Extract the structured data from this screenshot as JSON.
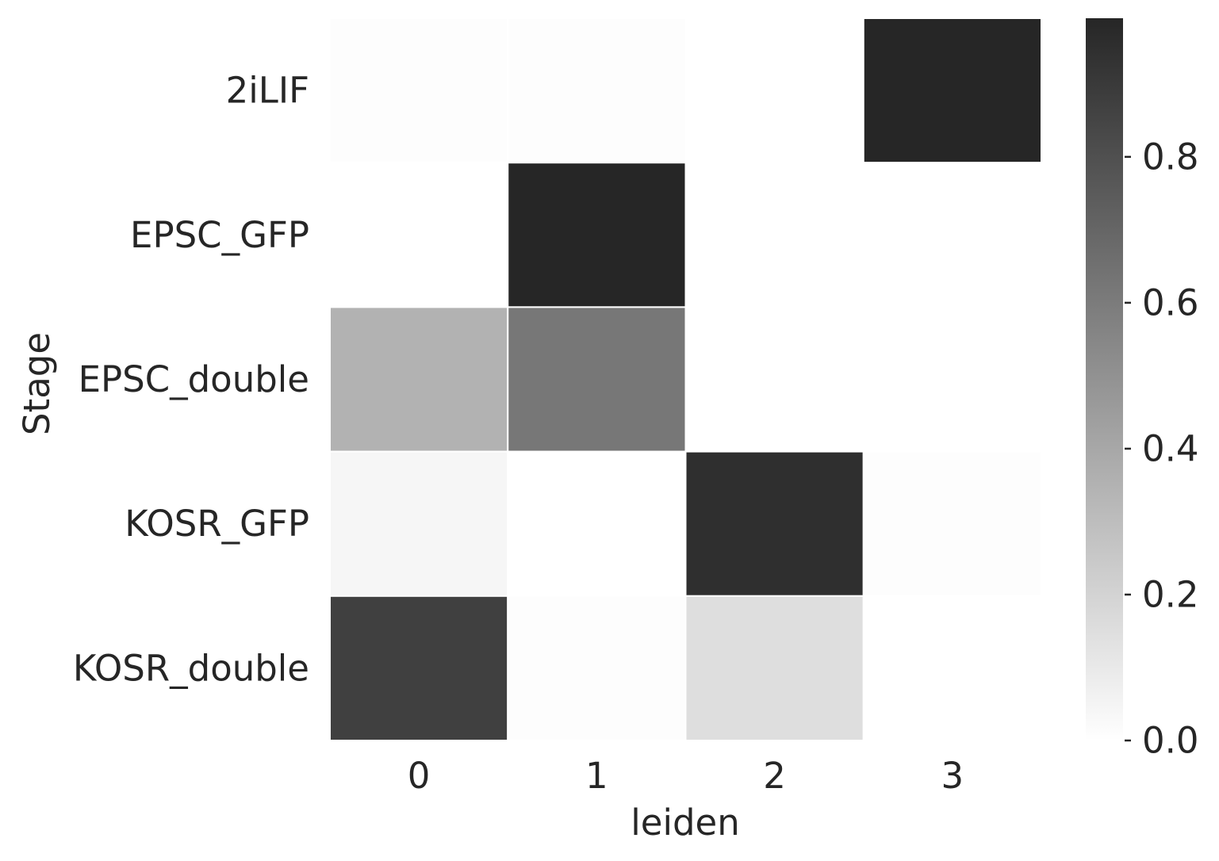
{
  "chart_data": {
    "type": "heatmap",
    "xlabel": "leiden",
    "ylabel": "Stage",
    "x_categories": [
      "0",
      "1",
      "2",
      "3"
    ],
    "y_categories": [
      "2iLIF",
      "EPSC_GFP",
      "EPSC_double",
      "KOSR_GFP",
      "KOSR_double"
    ],
    "values": [
      [
        0.01,
        0.01,
        0.0,
        0.99
      ],
      [
        0.0,
        0.99,
        0.0,
        0.0
      ],
      [
        0.35,
        0.62,
        0.0,
        0.0
      ],
      [
        0.04,
        0.0,
        0.95,
        0.01
      ],
      [
        0.87,
        0.01,
        0.15,
        0.0
      ]
    ],
    "colorbar": {
      "range": [
        0,
        0.99
      ],
      "ticks": [
        0.0,
        0.2,
        0.4,
        0.6,
        0.8
      ],
      "tick_labels": [
        "0.0",
        "0.2",
        "0.4",
        "0.6",
        "0.8"
      ],
      "color_low": "#ffffff",
      "color_high": "#262626"
    },
    "grid": false
  }
}
